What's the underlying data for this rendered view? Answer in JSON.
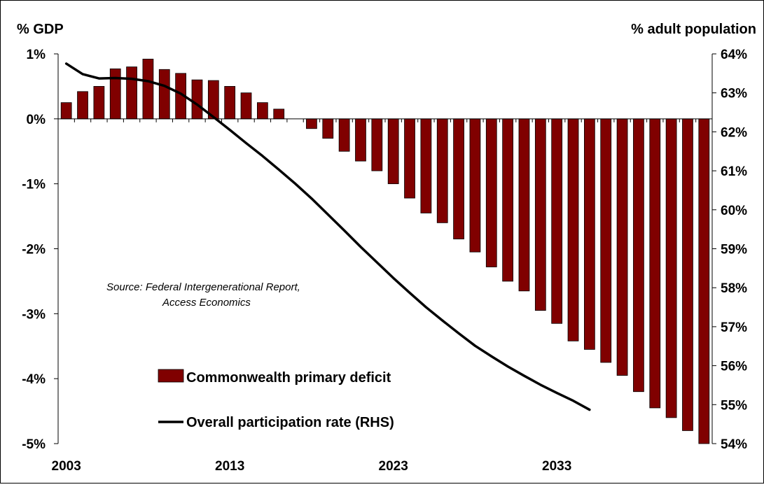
{
  "chart_data": {
    "type": "bar",
    "left_axis_title": "% GDP",
    "right_axis_title": "% adult population",
    "x_tick_labels": [
      "2003",
      "2013",
      "2023",
      "2033"
    ],
    "years": [
      2003,
      2004,
      2005,
      2006,
      2007,
      2008,
      2009,
      2010,
      2011,
      2012,
      2013,
      2014,
      2015,
      2016,
      2017,
      2018,
      2019,
      2020,
      2021,
      2022,
      2023,
      2024,
      2025,
      2026,
      2027,
      2028,
      2029,
      2030,
      2031,
      2032,
      2033,
      2034,
      2035,
      2036,
      2037,
      2038,
      2039,
      2040,
      2041,
      2042
    ],
    "left_axis": {
      "ylim": [
        -5,
        1
      ],
      "tick_values": [
        1,
        0,
        -1,
        -2,
        -3,
        -4,
        -5
      ],
      "tick_labels": [
        "1%",
        "0%",
        "-1%",
        "-2%",
        "-3%",
        "-4%",
        "-5%"
      ]
    },
    "right_axis": {
      "ylim": [
        54,
        64
      ],
      "tick_values": [
        64,
        63,
        62,
        61,
        60,
        59,
        58,
        57,
        56,
        55,
        54
      ],
      "tick_labels": [
        "64%",
        "63%",
        "62%",
        "61%",
        "60%",
        "59%",
        "58%",
        "57%",
        "56%",
        "55%",
        "54%"
      ]
    },
    "series": [
      {
        "name": "Commonwealth primary deficit",
        "type": "bar",
        "axis": "left",
        "color": "#800000",
        "values": [
          0.25,
          0.42,
          0.5,
          0.77,
          0.8,
          0.92,
          0.76,
          0.7,
          0.6,
          0.59,
          0.5,
          0.4,
          0.25,
          0.15,
          0.0,
          -0.15,
          -0.3,
          -0.5,
          -0.65,
          -0.8,
          -1.0,
          -1.22,
          -1.45,
          -1.6,
          -1.85,
          -2.05,
          -2.28,
          -2.5,
          -2.65,
          -2.95,
          -3.15,
          -3.42,
          -3.55,
          -3.75,
          -3.95,
          -4.2,
          -4.45,
          -4.6,
          -4.8,
          -5.0
        ]
      },
      {
        "name": "Overall participation rate (RHS)",
        "type": "line",
        "axis": "right",
        "color": "#000000",
        "values": [
          63.75,
          63.48,
          63.37,
          63.38,
          63.36,
          63.3,
          63.18,
          62.98,
          62.7,
          62.38,
          62.05,
          61.71,
          61.38,
          61.03,
          60.67,
          60.29,
          59.88,
          59.47,
          59.05,
          58.65,
          58.25,
          57.87,
          57.5,
          57.16,
          56.83,
          56.51,
          56.24,
          55.98,
          55.74,
          55.51,
          55.3,
          55.1,
          54.87
        ]
      }
    ],
    "legend_position": "bottom-left",
    "source_line1": "Source:  Federal Intergenerational Report,",
    "source_line2": "Access Economics",
    "grid": false
  }
}
